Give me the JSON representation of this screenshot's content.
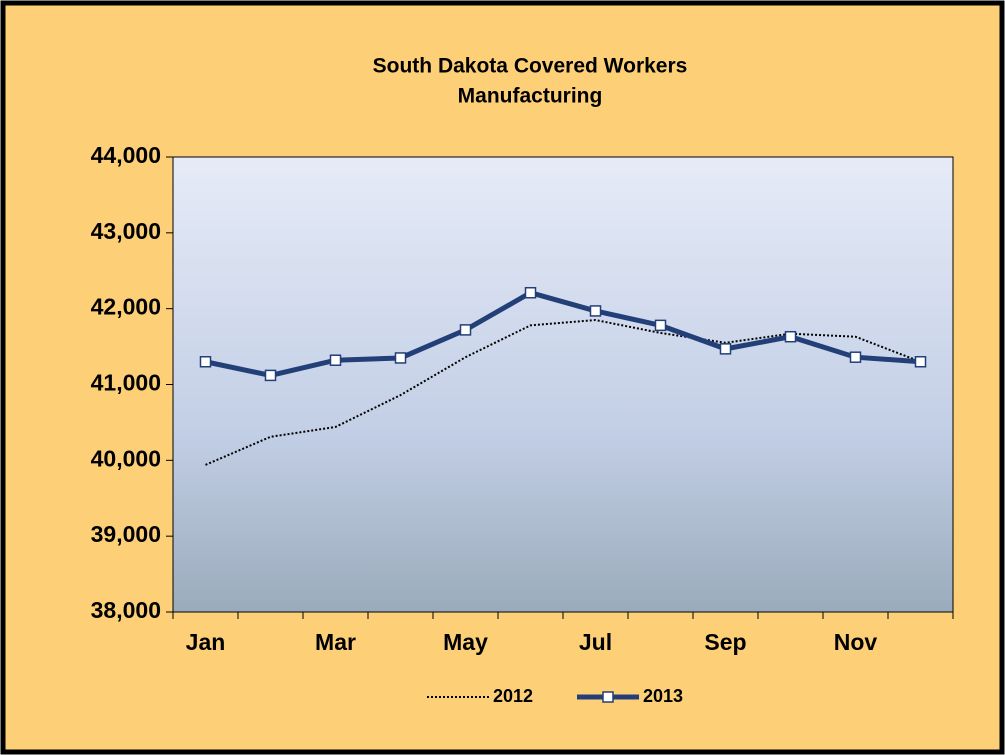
{
  "chart_data": {
    "type": "line",
    "title": "South Dakota Covered Workers",
    "subtitle": "Manufacturing",
    "categories": [
      "Jan",
      null,
      "Mar",
      null,
      "May",
      null,
      "Jul",
      null,
      "Sep",
      null,
      "Nov",
      null
    ],
    "series": [
      {
        "name": "2012",
        "color": "#000000",
        "style": "dotted",
        "marker": false,
        "values": [
          39940,
          40310,
          40440,
          40860,
          41360,
          41780,
          41850,
          41680,
          41550,
          41670,
          41630,
          41300
        ]
      },
      {
        "name": "2013",
        "color": "#233f78",
        "style": "solid",
        "marker": true,
        "values": [
          41300,
          41120,
          41320,
          41350,
          41720,
          42210,
          41970,
          41780,
          41470,
          41630,
          41360,
          41300
        ]
      }
    ],
    "ylim": [
      38000,
      44000
    ],
    "yticks": [
      {
        "value": 38000,
        "label": "38,000"
      },
      {
        "value": 39000,
        "label": "39,000"
      },
      {
        "value": 40000,
        "label": "40,000"
      },
      {
        "value": 41000,
        "label": "41,000"
      },
      {
        "value": 42000,
        "label": "42,000"
      },
      {
        "value": 43000,
        "label": "43,000"
      },
      {
        "value": 44000,
        "label": "44,000"
      }
    ],
    "legend": "bottom"
  }
}
